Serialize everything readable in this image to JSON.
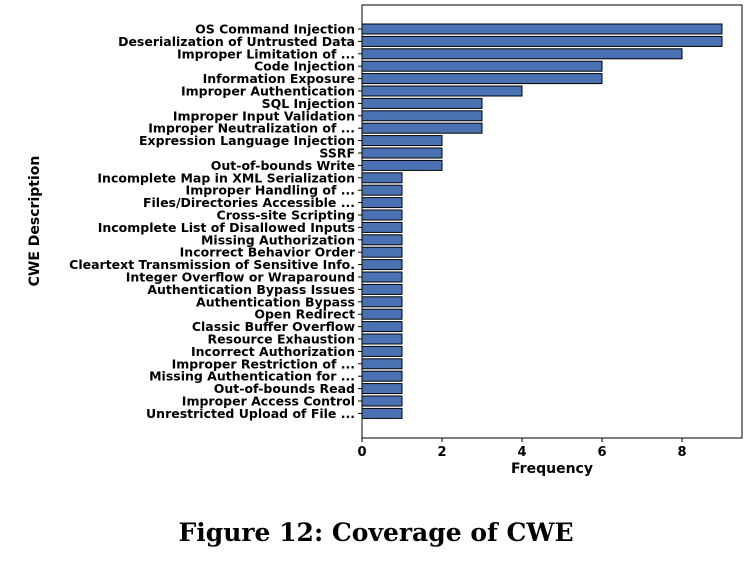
{
  "caption": "Figure 12: Coverage of CWE",
  "chart_data": {
    "type": "bar",
    "orientation": "horizontal",
    "xlabel": "Frequency",
    "ylabel": "CWE Description",
    "xlim": [
      0,
      9.5
    ],
    "xticks": [
      0,
      2,
      4,
      6,
      8
    ],
    "grid": false,
    "bar_color": "#4a72b2",
    "categories": [
      "OS Command Injection",
      "Deserialization of Untrusted Data",
      "Improper Limitation of ...",
      "Code Injection",
      "Information Exposure",
      "Improper Authentication",
      "SQL Injection",
      "Improper Input Validation",
      "Improper Neutralization of ...",
      "Expression Language Injection",
      "SSRF",
      "Out-of-bounds Write",
      "Incomplete Map in XML Serialization",
      "Improper Handling of ...",
      "Files/Directories Accessible ...",
      "Cross-site Scripting",
      "Incomplete List of Disallowed Inputs",
      "Missing Authorization",
      "Incorrect Behavior Order",
      "Cleartext Transmission of Sensitive Info.",
      "Integer Overflow or Wraparound",
      "Authentication Bypass Issues",
      "Authentication Bypass",
      "Open Redirect",
      "Classic Buffer Overflow",
      "Resource Exhaustion",
      "Incorrect Authorization",
      "Improper Restriction of ...",
      "Missing Authentication for ...",
      "Out-of-bounds Read",
      "Improper Access Control",
      "Unrestricted Upload of File ..."
    ],
    "values": [
      9,
      9,
      8,
      6,
      6,
      4,
      3,
      3,
      3,
      2,
      2,
      2,
      1,
      1,
      1,
      1,
      1,
      1,
      1,
      1,
      1,
      1,
      1,
      1,
      1,
      1,
      1,
      1,
      1,
      1,
      1,
      1
    ]
  }
}
